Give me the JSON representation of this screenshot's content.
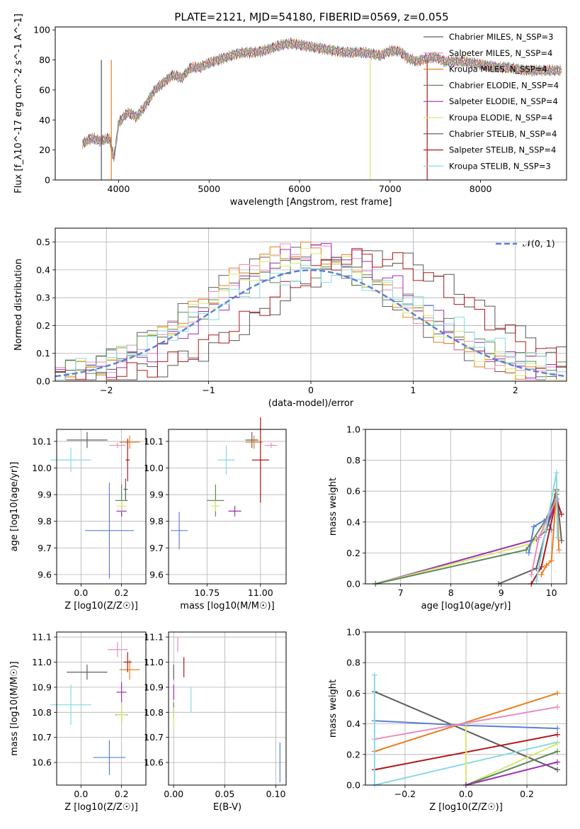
{
  "figure_title": "PLATE=2121, MJD=54180, FIBERID=0569, z=0.055",
  "colors": {
    "Chabrier MILES": "#5f5f5f",
    "Salpeter MILES": "#e88bbf",
    "Kroupa MILES": "#e87f1f",
    "Chabrier ELODIE": "#5a8a5a",
    "Salpeter ELODIE": "#9b2fb0",
    "Kroupa ELODIE": "#d9e66e",
    "Chabrier STELIB": "#555555",
    "Salpeter STELIB": "#b01818",
    "Kroupa STELIB": "#86d9e6",
    "normal": "#5b7fd6",
    "extra_blue": "#5b7fd6"
  },
  "chart_data": [
    {
      "type": "line",
      "title": "PLATE=2121, MJD=54180, FIBERID=0569, z=0.055",
      "xlabel": "wavelength [Angstrom, rest frame]",
      "ylabel": "Flux [f_λ10^-17 erg cm^-2 s^-1 A^-1]",
      "xlim": [
        3300,
        8950
      ],
      "ylim": [
        0,
        102
      ],
      "xticks": [
        4000,
        5000,
        6000,
        7000,
        8000
      ],
      "yticks": [
        0,
        20,
        40,
        60,
        80,
        100
      ],
      "legend": [
        "Chabrier MILES, N_SSP=3",
        "Salpeter MILES, N_SSP=4",
        "Kroupa MILES, N_SSP=4",
        "Chabrier ELODIE, N_SSP=4",
        "Salpeter ELODIE, N_SSP=4",
        "Kroupa ELODIE, N_SSP=4",
        "Chabrier STELIB, N_SSP=4",
        "Salpeter STELIB, N_SSP=4",
        "Kroupa STELIB, N_SSP=3"
      ],
      "legend_position": "right",
      "spectrum_envelope": {
        "x": [
          3600,
          3700,
          3800,
          3900,
          3950,
          4000,
          4100,
          4200,
          4300,
          4400,
          4500,
          4600,
          4700,
          4800,
          4900,
          5000,
          5100,
          5200,
          5300,
          5400,
          5500,
          5600,
          5700,
          5800,
          5900,
          6000,
          6100,
          6200,
          6300,
          6400,
          6500,
          6600,
          6700,
          6800,
          6900,
          7000,
          7100,
          7200,
          7300,
          7400,
          7500,
          7600,
          7700,
          7800,
          7900,
          8000,
          8100,
          8200,
          8300,
          8400,
          8500,
          8600,
          8700,
          8800,
          8900
        ],
        "y": [
          24,
          28,
          26,
          28,
          14,
          38,
          45,
          42,
          50,
          60,
          65,
          70,
          68,
          75,
          75,
          78,
          80,
          82,
          84,
          85,
          85,
          86,
          88,
          90,
          91,
          90,
          89,
          88,
          87,
          86,
          85,
          85,
          85,
          84,
          83,
          86,
          86,
          81,
          79,
          81,
          82,
          79,
          79,
          79,
          78,
          77,
          76,
          75,
          75,
          74,
          73,
          73,
          73,
          73,
          73
        ]
      }
    },
    {
      "type": "line",
      "xlabel": "(data-model)/error",
      "ylabel": "Normed distribution",
      "xlim": [
        -2.5,
        2.5
      ],
      "ylim": [
        0,
        0.55
      ],
      "xticks": [
        -2,
        -1,
        0,
        1,
        2
      ],
      "yticks": [
        0.0,
        0.1,
        0.2,
        0.3,
        0.4,
        0.5
      ],
      "legend": [
        "𝒩(0, 1)"
      ],
      "legend_position": "top-right",
      "normal_curve": {
        "mu": 0,
        "sigma": 1
      }
    },
    {
      "type": "scatter",
      "xlabel": "Z [log10(Z/Z☉)]",
      "ylabel": "age  [log10(age/yr)]",
      "xlim": [
        -0.12,
        0.32
      ],
      "ylim": [
        9.565,
        10.145
      ],
      "xticks": [
        0.0,
        0.2
      ],
      "yticks": [
        9.6,
        9.7,
        9.8,
        9.9,
        10.0,
        10.1
      ],
      "points": [
        {
          "series": "Chabrier MILES",
          "x": 0.03,
          "y": 10.105,
          "xerr": 0.1,
          "yerr": 0.03
        },
        {
          "series": "Salpeter MILES",
          "x": 0.18,
          "y": 10.085,
          "xerr": 0.04,
          "yerr": 0.01
        },
        {
          "series": "Kroupa MILES",
          "x": 0.24,
          "y": 10.097,
          "xerr": 0.05,
          "yerr": 0.025
        },
        {
          "series": "Chabrier ELODIE",
          "x": 0.2,
          "y": 9.878,
          "xerr": 0.03,
          "yerr": 0.06
        },
        {
          "series": "Salpeter ELODIE",
          "x": 0.2,
          "y": 9.838,
          "xerr": 0.025,
          "yerr": 0.02
        },
        {
          "series": "Kroupa ELODIE",
          "x": 0.2,
          "y": 9.857,
          "xerr": 0.025,
          "yerr": 0.02
        },
        {
          "series": "Chabrier STELIB",
          "x": 0.22,
          "y": 9.92,
          "xerr": 0.01,
          "yerr": 0.04
        },
        {
          "series": "Salpeter STELIB",
          "x": 0.23,
          "y": 10.03,
          "xerr": 0.01,
          "yerr": 0.08
        },
        {
          "series": "Kroupa STELIB",
          "x": -0.05,
          "y": 10.03,
          "xerr": 0.1,
          "yerr": 0.045
        },
        {
          "series": "extra",
          "x": 0.14,
          "y": 9.765,
          "xerr": 0.12,
          "yerr": 0.18
        }
      ]
    },
    {
      "type": "scatter",
      "xlabel": "mass [log10(M/M☉)]",
      "ylabel": "",
      "xlim": [
        10.57,
        11.12
      ],
      "ylim": [
        9.565,
        10.145
      ],
      "xticks": [
        10.75,
        11.0
      ],
      "yticks": [
        9.6,
        9.7,
        9.8,
        9.9,
        10.0,
        10.1
      ],
      "points": [
        {
          "series": "Chabrier MILES",
          "x": 10.96,
          "y": 10.105,
          "xerr": 0.03,
          "yerr": 0.03
        },
        {
          "series": "Salpeter MILES",
          "x": 11.05,
          "y": 10.085,
          "xerr": 0.03,
          "yerr": 0.01
        },
        {
          "series": "Kroupa MILES",
          "x": 10.97,
          "y": 10.097,
          "xerr": 0.04,
          "yerr": 0.025
        },
        {
          "series": "Chabrier ELODIE",
          "x": 10.79,
          "y": 9.878,
          "xerr": 0.04,
          "yerr": 0.06
        },
        {
          "series": "Salpeter ELODIE",
          "x": 10.88,
          "y": 9.838,
          "xerr": 0.03,
          "yerr": 0.02
        },
        {
          "series": "Kroupa ELODIE",
          "x": 10.79,
          "y": 9.857,
          "xerr": 0.02,
          "yerr": 0.02
        },
        {
          "series": "Salpeter STELIB",
          "x": 11.0,
          "y": 10.03,
          "xerr": 0.04,
          "yerr": 0.16
        },
        {
          "series": "Kroupa STELIB",
          "x": 10.84,
          "y": 10.03,
          "xerr": 0.04,
          "yerr": 0.055
        },
        {
          "series": "extra",
          "x": 10.62,
          "y": 9.765,
          "xerr": 0.04,
          "yerr": 0.07
        }
      ]
    },
    {
      "type": "line",
      "xlabel": "age  [log10(age/yr)]",
      "ylabel": "mass weight",
      "xlim": [
        6.3,
        10.3
      ],
      "ylim": [
        0.0,
        1.0
      ],
      "xticks": [
        7,
        8,
        9,
        10
      ],
      "yticks": [
        0.0,
        0.2,
        0.4,
        0.6,
        0.8,
        1.0
      ],
      "series": [
        {
          "name": "Salpeter ELODIE",
          "x": [
            6.5,
            9.7,
            9.9,
            10.1
          ],
          "y": [
            0.0,
            0.29,
            0.35,
            0.55
          ]
        },
        {
          "name": "Kroupa ELODIE",
          "x": [
            6.5,
            9.6,
            9.9,
            10.1
          ],
          "y": [
            0.0,
            0.26,
            0.36,
            0.6
          ]
        },
        {
          "name": "Chabrier ELODIE",
          "x": [
            6.5,
            9.5,
            9.9,
            10.1
          ],
          "y": [
            0.0,
            0.22,
            0.42,
            0.58
          ]
        },
        {
          "name": "extra",
          "x": [
            9.55,
            9.65,
            9.9,
            10.0
          ],
          "y": [
            0.2,
            0.37,
            0.42,
            0.35
          ]
        },
        {
          "name": "Chabrier MILES",
          "x": [
            8.95,
            9.7,
            10.1,
            10.2
          ],
          "y": [
            0.0,
            0.1,
            0.61,
            0.28
          ]
        },
        {
          "name": "Salpeter STELIB",
          "x": [
            9.6,
            9.8,
            10.1,
            10.2
          ],
          "y": [
            0.0,
            0.11,
            0.55,
            0.45
          ]
        },
        {
          "name": "Kroupa MILES",
          "x": [
            9.8,
            9.9,
            10.0,
            10.1,
            10.15
          ],
          "y": [
            0.06,
            0.12,
            0.15,
            0.6,
            0.22
          ]
        },
        {
          "name": "Salpeter MILES",
          "x": [
            9.6,
            9.75,
            10.1
          ],
          "y": [
            0.06,
            0.3,
            0.55
          ]
        },
        {
          "name": "Kroupa STELIB",
          "x": [
            9.7,
            10.1,
            10.12
          ],
          "y": [
            0.02,
            0.72,
            0.3
          ]
        }
      ]
    },
    {
      "type": "scatter",
      "xlabel": "Z [log10(Z/Z☉)]",
      "ylabel": "mass [log10(M/M☉)]",
      "xlim": [
        -0.12,
        0.32
      ],
      "ylim": [
        10.51,
        11.12
      ],
      "xticks": [
        0.0,
        0.2
      ],
      "yticks": [
        10.6,
        10.7,
        10.8,
        10.9,
        11.0,
        11.1
      ],
      "points": [
        {
          "series": "Chabrier MILES",
          "x": 0.03,
          "y": 10.96,
          "xerr": 0.1,
          "yerr": 0.03
        },
        {
          "series": "Salpeter MILES",
          "x": 0.18,
          "y": 11.05,
          "xerr": 0.05,
          "yerr": 0.03
        },
        {
          "series": "Kroupa MILES",
          "x": 0.24,
          "y": 10.97,
          "xerr": 0.05,
          "yerr": 0.04
        },
        {
          "series": "Chabrier ELODIE",
          "x": 0.2,
          "y": 10.79,
          "xerr": 0.03,
          "yerr": 0.04
        },
        {
          "series": "Salpeter ELODIE",
          "x": 0.2,
          "y": 10.88,
          "xerr": 0.025,
          "yerr": 0.04
        },
        {
          "series": "Kroupa ELODIE",
          "x": 0.2,
          "y": 10.79,
          "xerr": 0.025,
          "yerr": 0.04
        },
        {
          "series": "Salpeter STELIB",
          "x": 0.23,
          "y": 11.0,
          "xerr": 0.02,
          "yerr": 0.04
        },
        {
          "series": "Kroupa STELIB",
          "x": -0.05,
          "y": 10.83,
          "xerr": 0.1,
          "yerr": 0.08
        },
        {
          "series": "extra",
          "x": 0.14,
          "y": 10.62,
          "xerr": 0.08,
          "yerr": 0.07
        }
      ]
    },
    {
      "type": "scatter",
      "xlabel": "E(B-V)",
      "ylabel": "",
      "xlim": [
        -0.005,
        0.11
      ],
      "ylim": [
        10.51,
        11.12
      ],
      "xticks": [
        0.0,
        0.05,
        0.1
      ],
      "yticks": [
        10.6,
        10.7,
        10.8,
        10.9,
        11.0,
        11.1
      ],
      "points": [
        {
          "series": "Salpeter MILES",
          "x": 0.004,
          "y": 11.07,
          "yerr": 0.03
        },
        {
          "series": "Chabrier MILES",
          "x": 0.0,
          "y": 10.96,
          "yerr": 0.03
        },
        {
          "series": "Salpeter STELIB",
          "x": 0.01,
          "y": 10.98,
          "yerr": 0.04
        },
        {
          "series": "Salpeter ELODIE",
          "x": 0.0,
          "y": 10.88,
          "yerr": 0.03
        },
        {
          "series": "Kroupa STELIB",
          "x": 0.017,
          "y": 10.85,
          "yerr": 0.05
        },
        {
          "series": "Chabrier ELODIE",
          "x": 0.0,
          "y": 10.81,
          "yerr": 0.03
        },
        {
          "series": "Kroupa ELODIE",
          "x": 0.0,
          "y": 10.78,
          "yerr": 0.04
        },
        {
          "series": "extra",
          "x": 0.104,
          "y": 10.6,
          "yerr": 0.08
        }
      ]
    },
    {
      "type": "line",
      "xlabel": "Z [log10(Z/Z☉)]",
      "ylabel": "mass weight",
      "xlim": [
        -0.33,
        0.33
      ],
      "ylim": [
        0.0,
        1.0
      ],
      "xticks": [
        -0.2,
        0.0,
        0.2
      ],
      "yticks": [
        0.0,
        0.2,
        0.4,
        0.6,
        0.8,
        1.0
      ],
      "series": [
        {
          "name": "Chabrier MILES",
          "x": [
            -0.3,
            0.3
          ],
          "y": [
            0.61,
            0.1
          ]
        },
        {
          "name": "extra",
          "x": [
            -0.3,
            0.0,
            0.3
          ],
          "y": [
            0.42,
            0.39,
            0.37
          ]
        },
        {
          "name": "Kroupa MILES",
          "x": [
            -0.3,
            0.3
          ],
          "y": [
            0.22,
            0.6
          ]
        },
        {
          "name": "Salpeter MILES",
          "x": [
            -0.3,
            0.3
          ],
          "y": [
            0.3,
            0.51
          ]
        },
        {
          "name": "Salpeter STELIB",
          "x": [
            -0.3,
            0.3
          ],
          "y": [
            0.1,
            0.33
          ]
        },
        {
          "name": "Kroupa STELIB",
          "x": [
            -0.3,
            -0.3,
            0.3
          ],
          "y": [
            0.72,
            0.0,
            0.28
          ]
        },
        {
          "name": "Kroupa ELODIE",
          "x": [
            0.0,
            0.0,
            0.3
          ],
          "y": [
            0.38,
            0.0,
            0.27
          ]
        },
        {
          "name": "Chabrier ELODIE",
          "x": [
            0.0,
            0.3
          ],
          "y": [
            0.0,
            0.22
          ]
        },
        {
          "name": "Salpeter ELODIE",
          "x": [
            0.0,
            0.3
          ],
          "y": [
            0.0,
            0.15
          ]
        }
      ]
    }
  ]
}
